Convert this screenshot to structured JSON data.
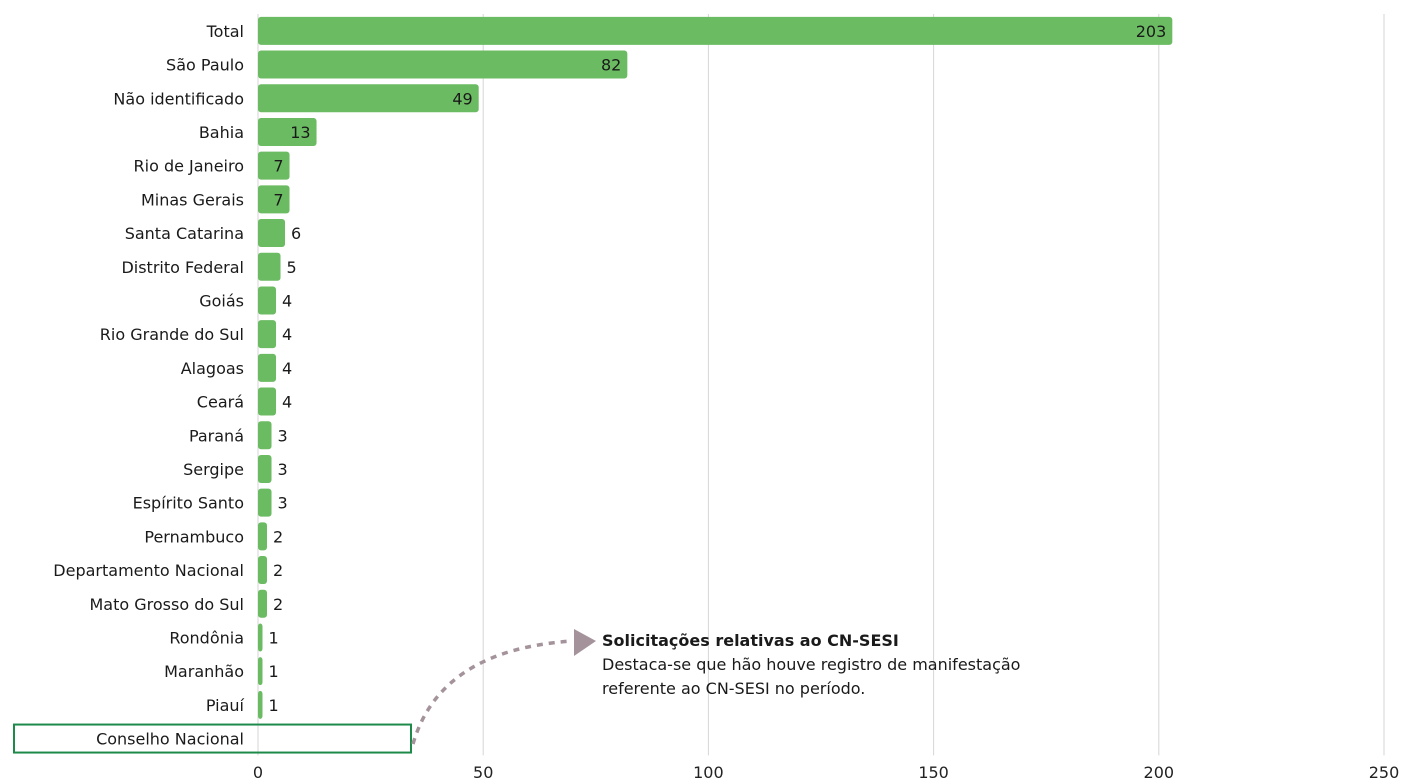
{
  "chart_data": {
    "type": "bar",
    "orientation": "horizontal",
    "categories": [
      "Total",
      "São Paulo",
      "Não identificado",
      "Bahia",
      "Rio de Janeiro",
      "Minas Gerais",
      "Santa Catarina",
      "Distrito Federal",
      "Goiás",
      "Rio Grande do Sul",
      "Alagoas",
      "Ceará",
      "Paraná",
      "Sergipe",
      "Espírito Santo",
      "Pernambuco",
      "Departamento Nacional",
      "Mato Grosso do Sul",
      "Rondônia",
      "Maranhão",
      "Piauí",
      "Conselho Nacional"
    ],
    "values": [
      203,
      82,
      49,
      13,
      7,
      7,
      6,
      5,
      4,
      4,
      4,
      4,
      3,
      3,
      3,
      2,
      2,
      2,
      1,
      1,
      1,
      0
    ],
    "xlim": [
      0,
      250
    ],
    "xticks": [
      0,
      50,
      100,
      150,
      200,
      250
    ],
    "grid": "vertical",
    "bar_color": "#6bbb62",
    "highlight_category": "Conselho Nacional",
    "highlight_color": "#1e8a4a",
    "arrow_color": "#a4939b"
  },
  "annotation": {
    "title": "Solicitações relativas ao CN-SESI",
    "body": "Destaca-se que hão houve registro de manifestação referente ao CN-SESI no período."
  }
}
